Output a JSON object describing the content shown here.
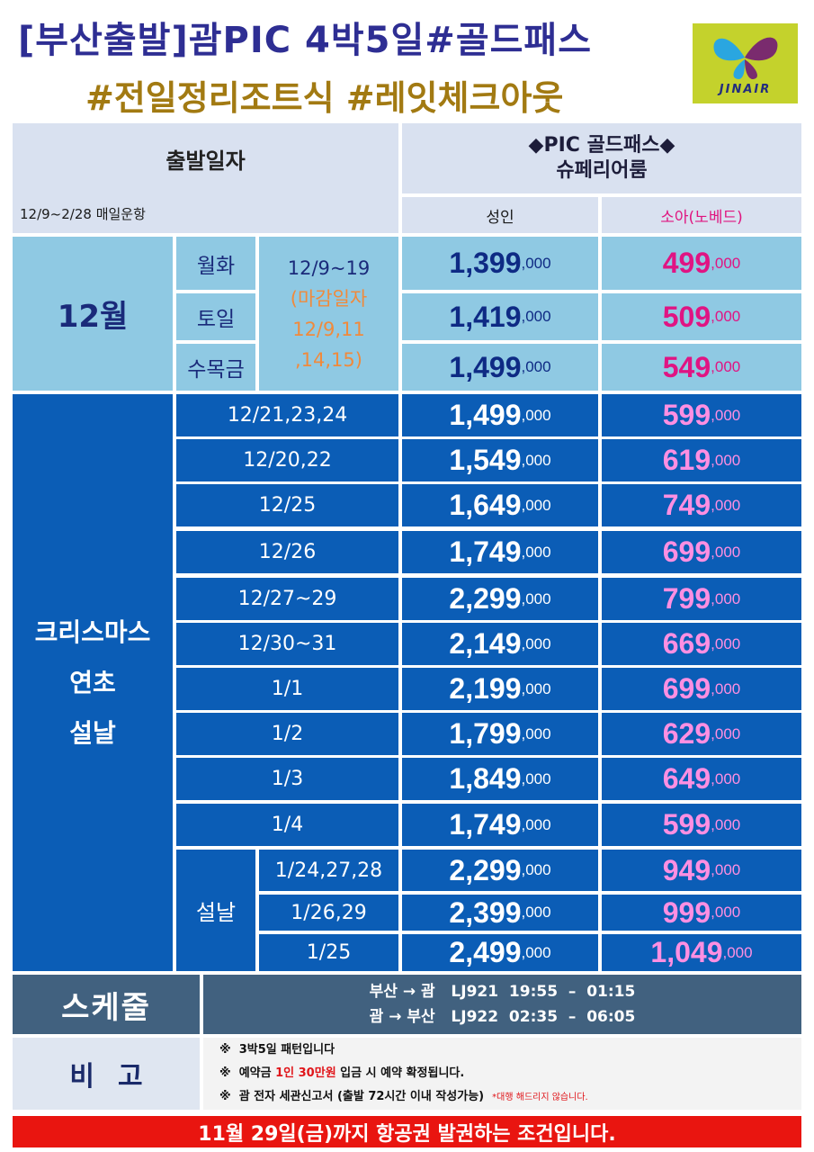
{
  "title": {
    "line1": "[부산출발]괌PIC  4박5일#골드패스",
    "line2": "#전일정리조트식  #레잇체크아웃",
    "logo_text": "JINAIR"
  },
  "header": {
    "depart_label": "출발일자",
    "period": "12/9~2/28  매일운항",
    "product_line1": "◆PIC  골드패스◆",
    "product_line2": "슈페리어룸",
    "adult_label": "성인",
    "child_label": "소아(노베드)"
  },
  "december": {
    "month": "12월",
    "note": "12/9~19\n(마감일자\n12/9,11\n,14,15)",
    "rows": [
      {
        "days": "월화",
        "adult": "1,399",
        "child": "499"
      },
      {
        "days": "토일",
        "adult": "1,419",
        "child": "509"
      },
      {
        "days": "수목금",
        "adult": "1,499",
        "child": "549"
      }
    ]
  },
  "holiday": {
    "label_lines": [
      "크리스마스",
      "연초",
      "설날"
    ],
    "rows": [
      {
        "date": "12/21,23,24",
        "adult": "1,499",
        "child": "599"
      },
      {
        "date": "12/20,22",
        "adult": "1,549",
        "child": "619"
      },
      {
        "date": "12/25",
        "adult": "1,649",
        "child": "749"
      },
      {
        "date": "12/26",
        "adult": "1,749",
        "child": "699"
      },
      {
        "date": "12/27~29",
        "adult": "2,299",
        "child": "799"
      },
      {
        "date": "12/30~31",
        "adult": "2,149",
        "child": "669"
      },
      {
        "date": "1/1",
        "adult": "2,199",
        "child": "699"
      },
      {
        "date": "1/2",
        "adult": "1,799",
        "child": "629"
      },
      {
        "date": "1/3",
        "adult": "1,849",
        "child": "649"
      },
      {
        "date": "1/4",
        "adult": "1,749",
        "child": "599"
      }
    ],
    "seollal_label": "설날",
    "seollal_rows": [
      {
        "date": "1/24,27,28",
        "adult": "2,299",
        "child": "949"
      },
      {
        "date": "1/26,29",
        "adult": "2,399",
        "child": "999"
      },
      {
        "date": "1/25",
        "adult": "2,499",
        "child": "1,049"
      }
    ]
  },
  "price_suffix": ",000",
  "schedule": {
    "label": "스케줄",
    "line1": "부산 → 괌   LJ921  19:55  –  01:15",
    "line2": "괌 → 부산   LJ922  02:35  –  06:05"
  },
  "notes": {
    "label": "비고",
    "line1": "※  3박5일 패턴입니다",
    "line2_pre": "※  예약금 ",
    "line2_red": "1인 30만원",
    "line2_post": " 입금 시 예약 확정됩니다.",
    "line3": "※  괌 전자 세관신고서 (출발 72시간 이내 작성가능)",
    "line3_red": "*대행 해드리지 않습니다."
  },
  "bottom_banner": "11월 29일(금)까지 항공권 발권하는 조건입니다."
}
